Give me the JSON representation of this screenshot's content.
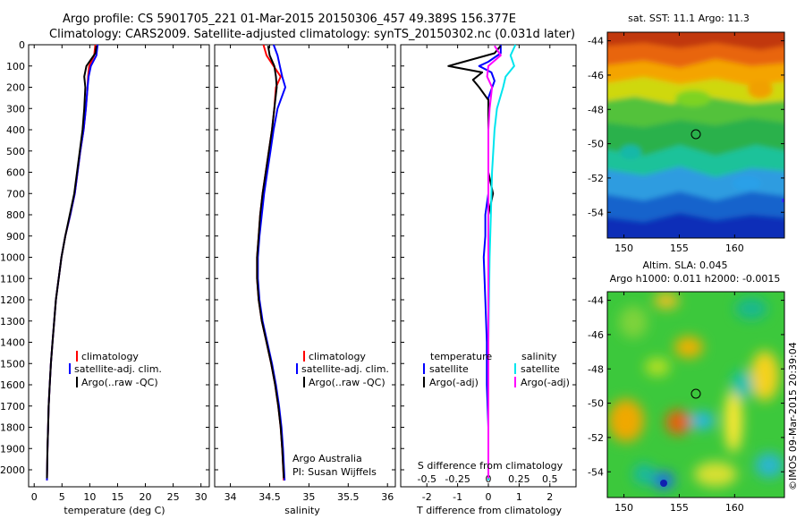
{
  "header": {
    "title_line1": "Argo profile: CS 5901705_221 01-Mar-2015 20150306_457 49.389S 156.377E",
    "title_line2": "Climatology: CARS2009. Satellite-adjusted climatology: synTS_20150302.nc (0.031d later)"
  },
  "colors": {
    "climatology": "#ff0000",
    "satellite": "#0000ff",
    "argo": "#000000",
    "sal_satellite": "#00e5ee",
    "sal_argo": "#ff00ff"
  },
  "chart_data": [
    {
      "id": "temperature",
      "type": "line",
      "xlabel": "temperature (deg C)",
      "ylabel": "",
      "xlim": [
        -1,
        31.5
      ],
      "ylim": [
        0,
        2080
      ],
      "x_ticks": [
        "0",
        "5",
        "10",
        "15",
        "20",
        "25",
        "30"
      ],
      "x_tick_values": [
        0,
        5,
        10,
        15,
        20,
        25,
        30
      ],
      "y_ticks": [
        "0",
        "100",
        "200",
        "300",
        "400",
        "500",
        "600",
        "700",
        "800",
        "900",
        "1000",
        "1100",
        "1200",
        "1300",
        "1400",
        "1500",
        "1600",
        "1700",
        "1800",
        "1900",
        "2000"
      ],
      "y_tick_values": [
        0,
        100,
        200,
        300,
        400,
        500,
        600,
        700,
        800,
        900,
        1000,
        1100,
        1200,
        1300,
        1400,
        1500,
        1600,
        1700,
        1800,
        1900,
        2000
      ],
      "legend": [
        "climatology",
        "satellite-adj. clim.",
        "Argo(..raw -QC)"
      ],
      "series": [
        {
          "name": "climatology",
          "color_key": "climatology",
          "points": [
            [
              11.0,
              0
            ],
            [
              10.8,
              50
            ],
            [
              9.9,
              100
            ],
            [
              9.7,
              150
            ],
            [
              9.6,
              200
            ],
            [
              9.3,
              300
            ],
            [
              8.9,
              400
            ],
            [
              8.3,
              500
            ],
            [
              7.8,
              600
            ],
            [
              7.3,
              700
            ],
            [
              6.5,
              800
            ],
            [
              5.6,
              900
            ],
            [
              4.9,
              1000
            ],
            [
              4.4,
              1100
            ],
            [
              3.9,
              1200
            ],
            [
              3.6,
              1300
            ],
            [
              3.3,
              1400
            ],
            [
              3.0,
              1500
            ],
            [
              2.8,
              1600
            ],
            [
              2.6,
              1700
            ],
            [
              2.5,
              1800
            ],
            [
              2.4,
              1900
            ],
            [
              2.3,
              2050
            ]
          ]
        },
        {
          "name": "satellite-adj. clim.",
          "color_key": "satellite",
          "points": [
            [
              11.4,
              0
            ],
            [
              11.2,
              50
            ],
            [
              10.2,
              100
            ],
            [
              9.8,
              150
            ],
            [
              9.6,
              200
            ],
            [
              9.3,
              300
            ],
            [
              8.9,
              400
            ],
            [
              8.3,
              500
            ],
            [
              7.8,
              600
            ],
            [
              7.3,
              700
            ],
            [
              6.5,
              800
            ],
            [
              5.6,
              900
            ],
            [
              4.9,
              1000
            ],
            [
              4.4,
              1100
            ],
            [
              3.9,
              1200
            ],
            [
              3.6,
              1300
            ],
            [
              3.3,
              1400
            ],
            [
              3.0,
              1500
            ],
            [
              2.8,
              1600
            ],
            [
              2.6,
              1700
            ],
            [
              2.5,
              1800
            ],
            [
              2.4,
              1900
            ],
            [
              2.3,
              2050
            ]
          ]
        },
        {
          "name": "Argo(..raw -QC)",
          "color_key": "argo",
          "points": [
            [
              11.2,
              5
            ],
            [
              11.0,
              40
            ],
            [
              9.4,
              100
            ],
            [
              9.0,
              150
            ],
            [
              9.2,
              200
            ],
            [
              9.0,
              300
            ],
            [
              8.7,
              400
            ],
            [
              8.2,
              500
            ],
            [
              7.7,
              600
            ],
            [
              7.2,
              700
            ],
            [
              6.4,
              800
            ],
            [
              5.6,
              900
            ],
            [
              4.9,
              1000
            ],
            [
              4.4,
              1100
            ],
            [
              3.9,
              1200
            ],
            [
              3.6,
              1300
            ],
            [
              3.3,
              1400
            ],
            [
              3.0,
              1500
            ],
            [
              2.8,
              1600
            ],
            [
              2.6,
              1700
            ],
            [
              2.5,
              1800
            ],
            [
              2.4,
              1900
            ],
            [
              2.3,
              2040
            ]
          ]
        }
      ]
    },
    {
      "id": "salinity",
      "type": "line",
      "xlabel": "salinity",
      "ylabel": "",
      "xlim": [
        33.8,
        36.1
      ],
      "ylim": [
        0,
        2080
      ],
      "x_ticks": [
        "34",
        "34.5",
        "35",
        "35.5",
        "36"
      ],
      "x_tick_values": [
        34,
        34.5,
        35,
        35.5,
        36
      ],
      "legend": [
        "climatology",
        "satellite-adj. clim.",
        "Argo(..raw -QC)"
      ],
      "annotation": [
        "Argo Australia",
        "PI: Susan Wijffels"
      ],
      "series": [
        {
          "name": "climatology",
          "color_key": "climatology",
          "points": [
            [
              34.42,
              0
            ],
            [
              34.46,
              50
            ],
            [
              34.55,
              100
            ],
            [
              34.64,
              150
            ],
            [
              34.58,
              200
            ],
            [
              34.56,
              300
            ],
            [
              34.53,
              400
            ],
            [
              34.49,
              500
            ],
            [
              34.45,
              600
            ],
            [
              34.41,
              700
            ],
            [
              34.38,
              800
            ],
            [
              34.36,
              900
            ],
            [
              34.34,
              1000
            ],
            [
              34.34,
              1100
            ],
            [
              34.36,
              1200
            ],
            [
              34.4,
              1300
            ],
            [
              34.46,
              1400
            ],
            [
              34.52,
              1500
            ],
            [
              34.57,
              1600
            ],
            [
              34.61,
              1700
            ],
            [
              34.64,
              1800
            ],
            [
              34.66,
              1900
            ],
            [
              34.68,
              2050
            ]
          ]
        },
        {
          "name": "satellite-adj. clim.",
          "color_key": "satellite",
          "points": [
            [
              34.55,
              0
            ],
            [
              34.6,
              50
            ],
            [
              34.63,
              100
            ],
            [
              34.66,
              150
            ],
            [
              34.7,
              200
            ],
            [
              34.6,
              300
            ],
            [
              34.55,
              400
            ],
            [
              34.51,
              500
            ],
            [
              34.47,
              600
            ],
            [
              34.43,
              700
            ],
            [
              34.4,
              800
            ],
            [
              34.37,
              900
            ],
            [
              34.35,
              1000
            ],
            [
              34.35,
              1100
            ],
            [
              34.37,
              1200
            ],
            [
              34.41,
              1300
            ],
            [
              34.47,
              1400
            ],
            [
              34.53,
              1500
            ],
            [
              34.58,
              1600
            ],
            [
              34.62,
              1700
            ],
            [
              34.65,
              1800
            ],
            [
              34.67,
              1900
            ],
            [
              34.69,
              2050
            ]
          ]
        },
        {
          "name": "Argo(..raw -QC)",
          "color_key": "argo",
          "points": [
            [
              34.48,
              5
            ],
            [
              34.5,
              50
            ],
            [
              34.56,
              100
            ],
            [
              34.58,
              150
            ],
            [
              34.59,
              200
            ],
            [
              34.56,
              300
            ],
            [
              34.53,
              400
            ],
            [
              34.49,
              500
            ],
            [
              34.45,
              600
            ],
            [
              34.41,
              700
            ],
            [
              34.38,
              800
            ],
            [
              34.36,
              900
            ],
            [
              34.34,
              1000
            ],
            [
              34.34,
              1100
            ],
            [
              34.36,
              1200
            ],
            [
              34.4,
              1300
            ],
            [
              34.46,
              1400
            ],
            [
              34.52,
              1500
            ],
            [
              34.57,
              1600
            ],
            [
              34.61,
              1700
            ],
            [
              34.64,
              1800
            ],
            [
              34.66,
              1900
            ],
            [
              34.68,
              2040
            ]
          ]
        }
      ]
    },
    {
      "id": "difference",
      "type": "line",
      "xlabel": "T difference from climatology",
      "xlabel_top": "S difference from climatology",
      "ylabel": "",
      "xlim": [
        -2.85,
        2.85
      ],
      "ylim": [
        0,
        2080
      ],
      "x_ticks": [
        "-2",
        "-1",
        "0",
        "1",
        "2"
      ],
      "x_tick_values": [
        -2,
        -1,
        0,
        1,
        2
      ],
      "s_ticks": [
        "-0.5",
        "-0.25",
        "0",
        "0.25",
        "0.5"
      ],
      "s_tick_values": [
        -0.5,
        -0.25,
        0,
        0.25,
        0.5
      ],
      "legend_left_title": "temperature",
      "legend_right_title": "salinity",
      "legend_left": [
        "satellite",
        "Argo(-adj)"
      ],
      "legend_right": [
        "satellite",
        "Argo(-adj)"
      ],
      "series": [
        {
          "name": "temperature satellite",
          "color_key": "satellite",
          "points": [
            [
              0.4,
              0
            ],
            [
              0.4,
              40
            ],
            [
              0.0,
              80
            ],
            [
              -0.3,
              100
            ],
            [
              0.1,
              130
            ],
            [
              0.2,
              170
            ],
            [
              0.0,
              250
            ],
            [
              0.0,
              400
            ],
            [
              0.0,
              600
            ],
            [
              0.0,
              700
            ],
            [
              -0.1,
              800
            ],
            [
              -0.1,
              900
            ],
            [
              -0.15,
              1000
            ],
            [
              -0.1,
              1200
            ],
            [
              -0.05,
              1400
            ],
            [
              -0.05,
              1600
            ],
            [
              0.0,
              1800
            ],
            [
              0.0,
              2050
            ]
          ]
        },
        {
          "name": "temperature Argo(-adj)",
          "color_key": "argo",
          "points": [
            [
              0.4,
              5
            ],
            [
              0.2,
              40
            ],
            [
              -1.3,
              100
            ],
            [
              -0.2,
              130
            ],
            [
              -0.5,
              165
            ],
            [
              -0.3,
              200
            ],
            [
              0.0,
              260
            ],
            [
              0.0,
              400
            ],
            [
              0.0,
              600
            ],
            [
              0.15,
              700
            ],
            [
              0.0,
              800
            ],
            [
              0.0,
              1000
            ],
            [
              0.0,
              1400
            ],
            [
              0.0,
              1600
            ],
            [
              0.0,
              1800
            ],
            [
              0.0,
              2040
            ]
          ]
        },
        {
          "name": "salinity satellite",
          "color_key": "sal_satellite",
          "points": [
            [
              0.22,
              0
            ],
            [
              0.18,
              50
            ],
            [
              0.21,
              100
            ],
            [
              0.14,
              150
            ],
            [
              0.12,
              200
            ],
            [
              0.07,
              300
            ],
            [
              0.05,
              400
            ],
            [
              0.04,
              500
            ],
            [
              0.03,
              600
            ],
            [
              0.02,
              800
            ],
            [
              0.01,
              1000
            ],
            [
              0.0,
              1400
            ],
            [
              0.0,
              2050
            ]
          ]
        },
        {
          "name": "salinity Argo(-adj)",
          "color_key": "sal_argo",
          "points": [
            [
              0.05,
              5
            ],
            [
              0.1,
              50
            ],
            [
              0.0,
              100
            ],
            [
              -0.01,
              150
            ],
            [
              0.03,
              200
            ],
            [
              0.01,
              300
            ],
            [
              0.0,
              400
            ],
            [
              0.0,
              600
            ],
            [
              0.0,
              800
            ],
            [
              0.0,
              1000
            ],
            [
              0.0,
              1400
            ],
            [
              0.0,
              2040
            ]
          ]
        }
      ]
    },
    {
      "id": "sst_map",
      "type": "heatmap",
      "title": "sat. SST: 11.1  Argo: 11.3",
      "x_ticks": [
        "150",
        "155",
        "160"
      ],
      "x_tick_values": [
        150,
        155,
        160
      ],
      "y_ticks": [
        "-44",
        "-46",
        "-48",
        "-50",
        "-52",
        "-54"
      ],
      "y_tick_values": [
        -44,
        -46,
        -48,
        -50,
        -52,
        -54
      ],
      "xlim": [
        148.5,
        164.5
      ],
      "ylim": [
        -55.5,
        -43.5
      ],
      "marker": [
        156.377,
        -49.389
      ]
    },
    {
      "id": "sla_map",
      "type": "heatmap",
      "title_line1": "Altim. SLA: 0.045",
      "title_line2": "Argo h1000: 0.011  h2000: -0.0015",
      "x_ticks": [
        "150",
        "155",
        "160"
      ],
      "x_tick_values": [
        150,
        155,
        160
      ],
      "y_ticks": [
        "-44",
        "-46",
        "-48",
        "-50",
        "-52",
        "-54"
      ],
      "y_tick_values": [
        -44,
        -46,
        -48,
        -50,
        -52,
        -54
      ],
      "xlim": [
        148.5,
        164.5
      ],
      "ylim": [
        -55.5,
        -43.5
      ],
      "marker": [
        156.377,
        -49.389
      ]
    }
  ],
  "credit": "©IMOS 09-Mar-2015 20:39:04"
}
